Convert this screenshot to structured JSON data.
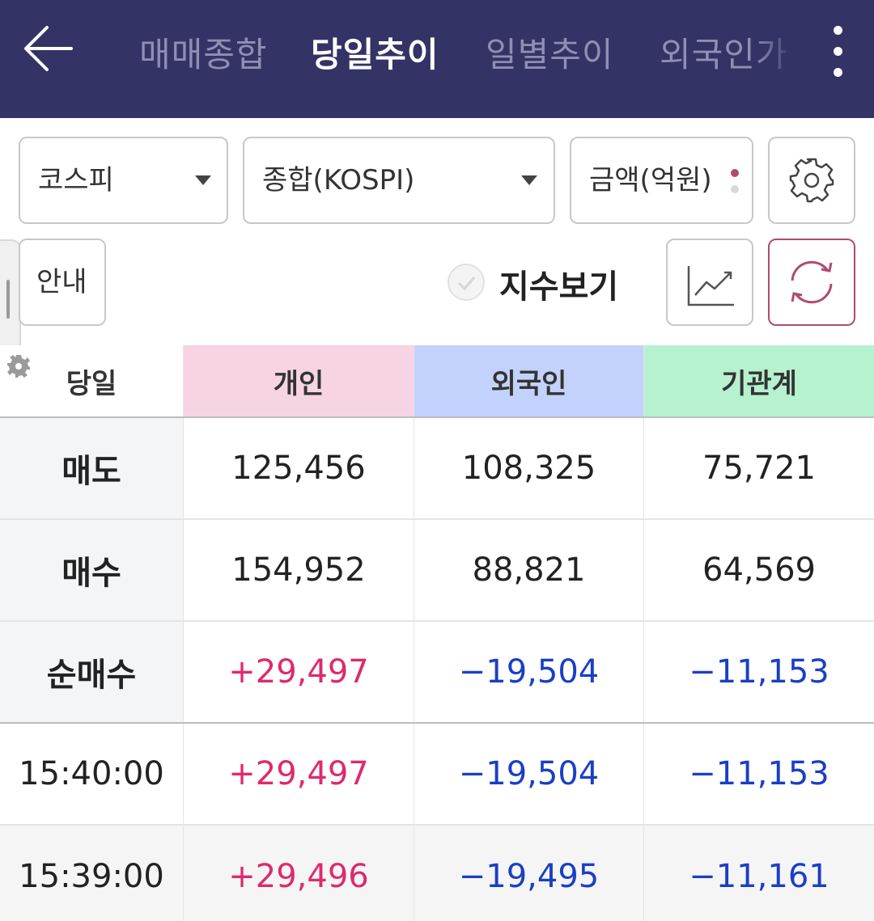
{
  "header": {
    "tabs": [
      {
        "label": "매매종합",
        "active": false
      },
      {
        "label": "당일추이",
        "active": true
      },
      {
        "label": "일별추이",
        "active": false
      },
      {
        "label": "외국인가",
        "active": false
      }
    ],
    "back_icon": "back-arrow-icon",
    "more_icon": "more-vertical-icon"
  },
  "controls": {
    "market": "코스피",
    "index": "종합(KOSPI)",
    "unit": "금액(억원)",
    "guide": "안내",
    "index_toggle_label": "지수보기",
    "settings_icon": "gear-icon",
    "chart_icon": "line-chart-icon",
    "refresh_icon": "refresh-icon"
  },
  "colors": {
    "header_bg": "#333366",
    "individual_header": "#f7d4e4",
    "foreign_header": "#c3d2fc",
    "institution_header": "#b6f1d0",
    "positive": "#dd2a6e",
    "negative": "#1a3fc4"
  },
  "table": {
    "columns": [
      "당일",
      "개인",
      "외국인",
      "기관계"
    ],
    "rows": [
      {
        "label": "매도",
        "values": [
          "125,456",
          "108,325",
          "75,721"
        ],
        "kind": "plain"
      },
      {
        "label": "매수",
        "values": [
          "154,952",
          "88,821",
          "64,569"
        ],
        "kind": "plain"
      },
      {
        "label": "순매수",
        "values": [
          "+29,497",
          "−19,504",
          "−11,153"
        ],
        "kind": "signed"
      },
      {
        "label": "15:40:00",
        "values": [
          "+29,497",
          "−19,504",
          "−11,153"
        ],
        "kind": "time"
      },
      {
        "label": "15:39:00",
        "values": [
          "+29,496",
          "−19,495",
          "−11,161"
        ],
        "kind": "time"
      }
    ]
  }
}
